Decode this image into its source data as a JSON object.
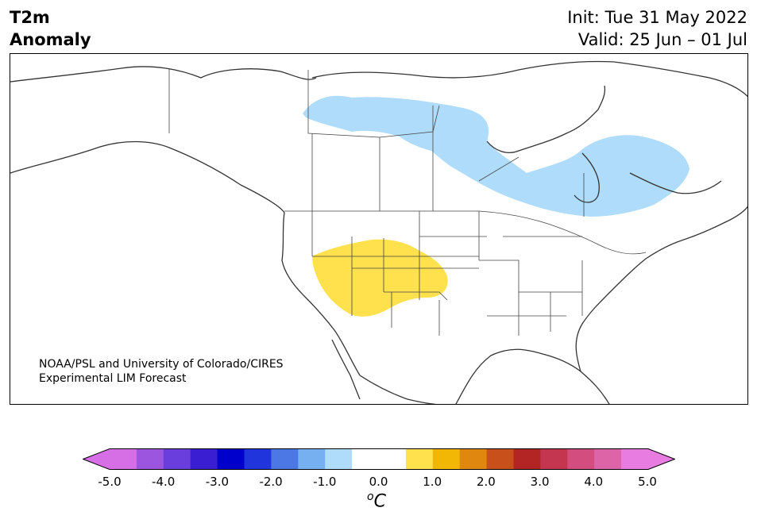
{
  "header": {
    "title_line1": "T2m",
    "title_line2": "Anomaly",
    "init": "Init: Tue 31 May 2022",
    "valid": "Valid: 25 Jun – 01 Jul"
  },
  "credit": {
    "line1": "NOAA/PSL and University of Colorado/CIRES",
    "line2": "Experimental LIM Forecast"
  },
  "colorbar": {
    "tick_labels": [
      "-5.0",
      "-4.0",
      "-3.0",
      "-2.0",
      "-1.0",
      "0.0",
      "1.0",
      "2.0",
      "3.0",
      "4.0",
      "5.0"
    ],
    "unit_super": "o",
    "unit_main": "C",
    "colors": [
      "#d66ee6",
      "#9b55de",
      "#6a3ddd",
      "#3a1ed2",
      "#0000cc",
      "#2035dc",
      "#4c78e6",
      "#77b0f0",
      "#aedcfa",
      "#ffffff",
      "#ffffff",
      "#ffe14d",
      "#f2b705",
      "#df870e",
      "#c8501a",
      "#b32424",
      "#c43550",
      "#d34e7e",
      "#de64a8",
      "#e87ce0"
    ],
    "extend_min_color": "#d66ee6",
    "extend_max_color": "#e87ce0"
  },
  "anomalies": [
    {
      "region": "Central/Eastern Canada",
      "sign": "cool",
      "range": "-1.0 to -0.5",
      "color": "#aedcfa"
    },
    {
      "region": "US Southwest / Four Corners",
      "sign": "warm",
      "range": "0.5 to 1.0",
      "color": "#ffe14d"
    }
  ]
}
